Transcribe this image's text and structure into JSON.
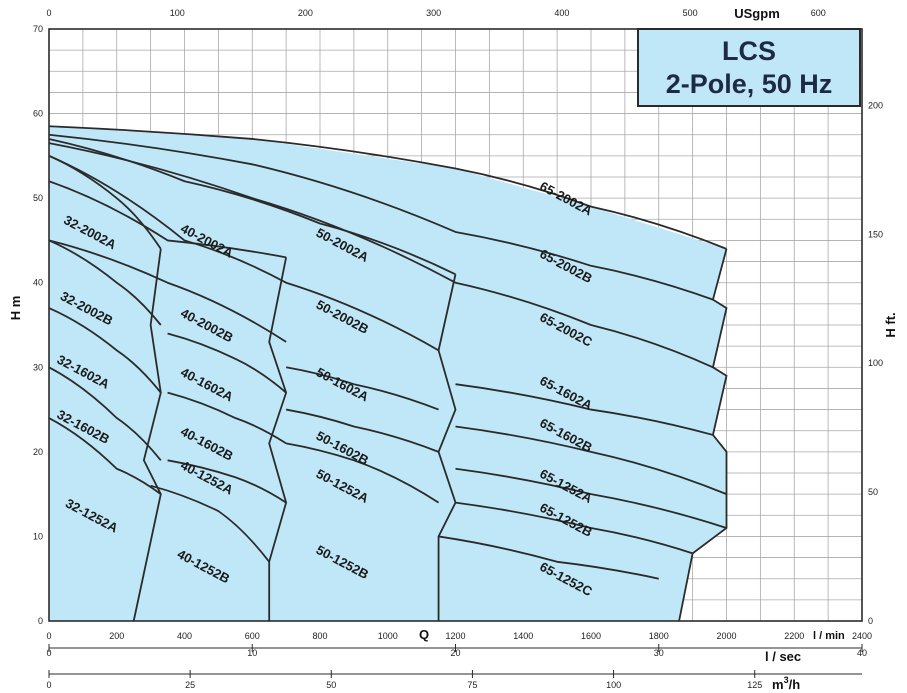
{
  "chart_data": {
    "type": "area",
    "title": [
      "LCS",
      "2-Pole, 50 Hz"
    ],
    "ylabel_left": "H m",
    "ylabel_right": "H ft.",
    "q_marker": "Q",
    "axes": {
      "bottom_lmin": {
        "unit": "l / min",
        "ticks": [
          "0",
          "200",
          "400",
          "600",
          "800",
          "1000",
          "1200",
          "1400",
          "1600",
          "1800",
          "2000",
          "2200",
          "2400"
        ],
        "range": [
          0,
          2400
        ]
      },
      "bottom_lsec": {
        "unit": "l / sec",
        "ticks": [
          "0",
          "10",
          "20",
          "30",
          "40"
        ],
        "range": [
          0,
          40
        ]
      },
      "bottom_m3h": {
        "unit": "m³/h",
        "unit_base": "m",
        "unit_sup": "3",
        "unit_tail": "/h",
        "ticks": [
          "0",
          "25",
          "50",
          "75",
          "100",
          "125"
        ],
        "range": [
          0,
          144
        ]
      },
      "top_usgpm": {
        "unit": "USgpm",
        "ticks": [
          "0",
          "100",
          "200",
          "300",
          "400",
          "500",
          "600"
        ],
        "range": [
          0,
          634
        ]
      },
      "left_hm": {
        "ticks": [
          "0",
          "10",
          "20",
          "30",
          "40",
          "50",
          "60",
          "70"
        ],
        "range": [
          0,
          70
        ]
      },
      "right_hft": {
        "ticks": [
          "0",
          "50",
          "100",
          "150",
          "200"
        ],
        "range": [
          0,
          229.7
        ]
      }
    },
    "grid": true,
    "pump_curves": [
      {
        "name": "65-2002A",
        "points": [
          [
            0,
            58.5
          ],
          [
            600,
            57
          ],
          [
            1200,
            53.5
          ],
          [
            1600,
            49
          ],
          [
            2000,
            44
          ]
        ]
      },
      {
        "name": "65-2002B",
        "points": [
          [
            0,
            57.5
          ],
          [
            600,
            54
          ],
          [
            1200,
            46
          ],
          [
            1600,
            42
          ],
          [
            1960,
            38
          ]
        ]
      },
      {
        "name": "65-2002C",
        "points": [
          [
            0,
            56.5
          ],
          [
            600,
            50
          ],
          [
            1200,
            40
          ],
          [
            1600,
            35
          ],
          [
            1960,
            30
          ]
        ]
      },
      {
        "name": "65-1602A",
        "points": [
          [
            1200,
            28
          ],
          [
            1600,
            25
          ],
          [
            1960,
            22
          ]
        ]
      },
      {
        "name": "65-1602B",
        "points": [
          [
            1200,
            23
          ],
          [
            1600,
            20
          ],
          [
            2000,
            15
          ]
        ]
      },
      {
        "name": "65-1252A",
        "points": [
          [
            1200,
            18
          ],
          [
            1600,
            15
          ],
          [
            2000,
            11
          ]
        ]
      },
      {
        "name": "65-1252B",
        "points": [
          [
            1200,
            14
          ],
          [
            1600,
            11
          ],
          [
            1900,
            8
          ]
        ]
      },
      {
        "name": "65-1252C",
        "points": [
          [
            1150,
            10
          ],
          [
            1500,
            7
          ],
          [
            1800,
            5
          ]
        ]
      },
      {
        "name": "50-2002A",
        "points": [
          [
            0,
            57
          ],
          [
            400,
            52
          ],
          [
            800,
            47
          ],
          [
            1200,
            41
          ]
        ]
      },
      {
        "name": "50-2002B",
        "points": [
          [
            0,
            55
          ],
          [
            400,
            45
          ],
          [
            700,
            40
          ],
          [
            1150,
            32
          ]
        ]
      },
      {
        "name": "50-1602A",
        "points": [
          [
            700,
            30
          ],
          [
            900,
            28
          ],
          [
            1150,
            25
          ]
        ]
      },
      {
        "name": "50-1602B",
        "points": [
          [
            700,
            25
          ],
          [
            900,
            23
          ],
          [
            1150,
            20
          ]
        ]
      },
      {
        "name": "50-1252A",
        "points": [
          [
            700,
            21
          ],
          [
            900,
            19
          ],
          [
            1150,
            14
          ]
        ]
      },
      {
        "name": "40-2002A",
        "points": [
          [
            0,
            52
          ],
          [
            350,
            45
          ],
          [
            700,
            43
          ]
        ]
      },
      {
        "name": "40-2002B",
        "points": [
          [
            0,
            45
          ],
          [
            350,
            40
          ],
          [
            700,
            33
          ]
        ]
      },
      {
        "name": "40-1602A",
        "points": [
          [
            350,
            34
          ],
          [
            550,
            31
          ],
          [
            700,
            27
          ]
        ]
      },
      {
        "name": "40-1602B",
        "points": [
          [
            350,
            27
          ],
          [
            550,
            24
          ],
          [
            700,
            21
          ]
        ]
      },
      {
        "name": "40-1252A",
        "points": [
          [
            350,
            19
          ],
          [
            550,
            17
          ],
          [
            700,
            14
          ]
        ]
      },
      {
        "name": "40-1252B",
        "points": [
          [
            300,
            16
          ],
          [
            500,
            13
          ],
          [
            650,
            7
          ]
        ]
      },
      {
        "name": "32-2002A",
        "points": [
          [
            0,
            55
          ],
          [
            200,
            50
          ],
          [
            330,
            44
          ]
        ]
      },
      {
        "name": "32-2002B",
        "points": [
          [
            0,
            45
          ],
          [
            200,
            40
          ],
          [
            330,
            35
          ]
        ]
      },
      {
        "name": "32-1602A",
        "points": [
          [
            0,
            37
          ],
          [
            200,
            32
          ],
          [
            330,
            27
          ]
        ]
      },
      {
        "name": "32-1602B",
        "points": [
          [
            0,
            30
          ],
          [
            200,
            24
          ],
          [
            330,
            19
          ]
        ]
      },
      {
        "name": "32-1252A",
        "points": [
          [
            0,
            24
          ],
          [
            200,
            18
          ],
          [
            330,
            15
          ]
        ]
      }
    ],
    "region_labels": [
      {
        "name": "32-2002A",
        "q": 115,
        "h": 45.5
      },
      {
        "name": "32-2002B",
        "q": 105,
        "h": 36.5
      },
      {
        "name": "32-1602A",
        "q": 95,
        "h": 29
      },
      {
        "name": "32-1602B",
        "q": 95,
        "h": 22.5
      },
      {
        "name": "32-1252A",
        "q": 120,
        "h": 12
      },
      {
        "name": "40-2002A",
        "q": 460,
        "h": 44.5
      },
      {
        "name": "40-2002B",
        "q": 460,
        "h": 34.5
      },
      {
        "name": "40-1602A",
        "q": 460,
        "h": 27.5
      },
      {
        "name": "40-1602B",
        "q": 460,
        "h": 20.5
      },
      {
        "name": "40-1252A",
        "q": 460,
        "h": 16.5
      },
      {
        "name": "40-1252B",
        "q": 450,
        "h": 6
      },
      {
        "name": "50-2002A",
        "q": 860,
        "h": 44
      },
      {
        "name": "50-2002B",
        "q": 860,
        "h": 35.5
      },
      {
        "name": "50-1602A",
        "q": 860,
        "h": 27.5
      },
      {
        "name": "50-1602B",
        "q": 860,
        "h": 20
      },
      {
        "name": "50-1252A",
        "q": 860,
        "h": 15.5
      },
      {
        "name": "50-1252B",
        "q": 860,
        "h": 6.5
      },
      {
        "name": "65-2002A",
        "q": 1520,
        "h": 49.5
      },
      {
        "name": "65-2002B",
        "q": 1520,
        "h": 41.5
      },
      {
        "name": "65-2002C",
        "q": 1520,
        "h": 34
      },
      {
        "name": "65-1602A",
        "q": 1520,
        "h": 26.5
      },
      {
        "name": "65-1602B",
        "q": 1520,
        "h": 21.5
      },
      {
        "name": "65-1252A",
        "q": 1520,
        "h": 15.5
      },
      {
        "name": "65-1252B",
        "q": 1520,
        "h": 11.5
      },
      {
        "name": "65-1252C",
        "q": 1520,
        "h": 4.5
      }
    ],
    "colors": {
      "fill": "#bfe7f7",
      "curve": "#2b2b2b",
      "grid": "#a9a9a9"
    }
  }
}
